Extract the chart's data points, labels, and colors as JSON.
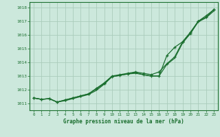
{
  "title": "Graphe pression niveau de la mer (hPa)",
  "bg_color": "#cce8dc",
  "grid_color": "#aaccbb",
  "line_color": "#1a6e2e",
  "text_color": "#1a6e2e",
  "xlim": [
    -0.5,
    23.5
  ],
  "ylim": [
    1010.5,
    1018.4
  ],
  "yticks": [
    1011,
    1012,
    1013,
    1014,
    1015,
    1016,
    1017,
    1018
  ],
  "xticks": [
    0,
    1,
    2,
    3,
    4,
    5,
    6,
    7,
    8,
    9,
    10,
    11,
    12,
    13,
    14,
    15,
    16,
    17,
    18,
    19,
    20,
    21,
    22,
    23
  ],
  "series1_x": [
    0,
    1,
    2,
    3,
    4,
    5,
    6,
    7,
    8,
    9,
    10,
    11,
    12,
    13,
    14,
    15,
    16,
    17,
    18,
    19,
    20,
    21,
    22,
    23
  ],
  "series1_y": [
    1011.4,
    1011.3,
    1011.35,
    1011.1,
    1011.25,
    1011.4,
    1011.55,
    1011.7,
    1012.1,
    1012.5,
    1013.0,
    1013.1,
    1013.2,
    1013.3,
    1013.2,
    1013.1,
    1013.3,
    1013.9,
    1014.4,
    1015.5,
    1016.2,
    1017.0,
    1017.4,
    1017.85
  ],
  "series2_x": [
    0,
    1,
    2,
    3,
    4,
    5,
    6,
    7,
    8,
    9,
    10,
    11,
    12,
    13,
    14,
    15,
    16,
    17,
    18,
    19,
    20,
    21,
    22,
    23
  ],
  "series2_y": [
    1011.4,
    1011.3,
    1011.35,
    1011.1,
    1011.25,
    1011.4,
    1011.55,
    1011.7,
    1012.05,
    1012.45,
    1012.95,
    1013.05,
    1013.15,
    1013.25,
    1013.1,
    1013.0,
    1013.0,
    1014.5,
    1015.1,
    1015.5,
    1016.1,
    1017.0,
    1017.3,
    1017.85
  ],
  "series3_x": [
    0,
    1,
    2,
    3,
    4,
    5,
    6,
    7,
    8,
    9,
    10,
    11,
    12,
    13,
    14,
    15,
    16,
    17,
    18,
    19,
    20,
    21,
    22,
    23
  ],
  "series3_y": [
    1011.4,
    1011.3,
    1011.35,
    1011.1,
    1011.2,
    1011.35,
    1011.5,
    1011.65,
    1011.95,
    1012.4,
    1012.95,
    1013.05,
    1013.15,
    1013.2,
    1013.1,
    1013.0,
    1013.0,
    1013.85,
    1014.3,
    1015.4,
    1016.1,
    1016.95,
    1017.25,
    1017.75
  ]
}
